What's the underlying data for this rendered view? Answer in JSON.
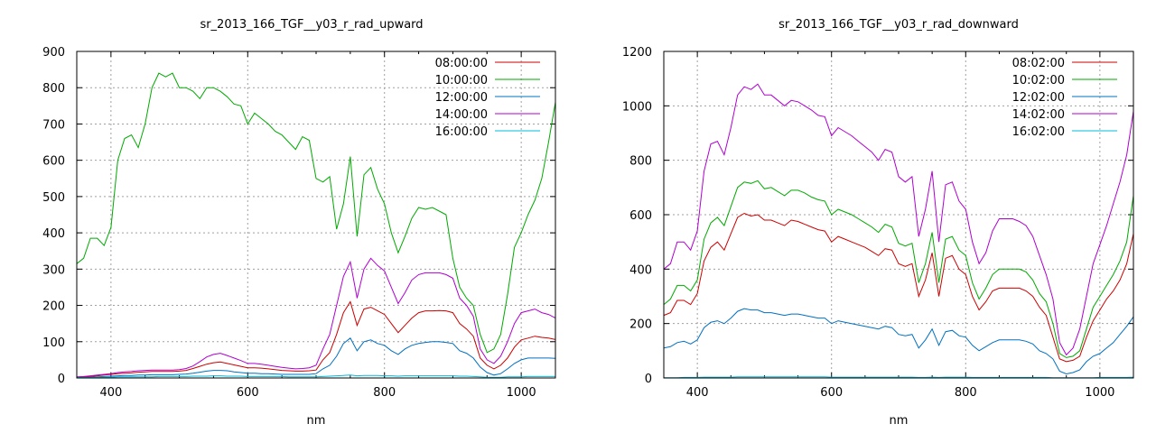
{
  "chart_data": [
    {
      "type": "line",
      "title": "sr_2013_166_TGF__y03_r_rad_upward",
      "xlabel": "nm",
      "ylabel": "",
      "xlim": [
        350,
        1050
      ],
      "ylim": [
        0,
        900
      ],
      "xticks": [
        400,
        600,
        800,
        1000
      ],
      "yticks": [
        0,
        100,
        200,
        300,
        400,
        500,
        600,
        700,
        800,
        900
      ],
      "grid": true,
      "legend_position": "top-right",
      "x": [
        350,
        360,
        370,
        380,
        390,
        400,
        410,
        420,
        430,
        440,
        450,
        460,
        470,
        480,
        490,
        500,
        510,
        520,
        530,
        540,
        550,
        560,
        570,
        580,
        590,
        600,
        610,
        620,
        630,
        640,
        650,
        660,
        670,
        680,
        690,
        700,
        710,
        720,
        730,
        740,
        750,
        760,
        770,
        780,
        790,
        800,
        810,
        820,
        830,
        840,
        850,
        860,
        870,
        880,
        890,
        900,
        910,
        920,
        930,
        940,
        950,
        960,
        970,
        980,
        990,
        1000,
        1010,
        1020,
        1030,
        1040,
        1050
      ],
      "series": [
        {
          "name": "08:00:00",
          "color": "#cc0000",
          "values": [
            2,
            3,
            4,
            6,
            8,
            10,
            12,
            13,
            14,
            16,
            17,
            18,
            18,
            18,
            18,
            19,
            21,
            26,
            32,
            38,
            42,
            44,
            40,
            36,
            32,
            28,
            28,
            27,
            25,
            23,
            21,
            20,
            19,
            19,
            20,
            22,
            50,
            70,
            120,
            180,
            210,
            145,
            190,
            195,
            185,
            175,
            150,
            125,
            145,
            165,
            180,
            185,
            185,
            186,
            185,
            180,
            150,
            135,
            115,
            55,
            35,
            25,
            35,
            55,
            85,
            105,
            110,
            115,
            112,
            110,
            106
          ]
        },
        {
          "name": "10:00:00",
          "color": "#00aa00",
          "values": [
            315,
            330,
            385,
            385,
            365,
            415,
            600,
            660,
            670,
            635,
            700,
            800,
            840,
            830,
            840,
            800,
            800,
            790,
            770,
            800,
            800,
            790,
            775,
            755,
            750,
            700,
            730,
            715,
            700,
            680,
            670,
            650,
            630,
            665,
            655,
            550,
            540,
            555,
            410,
            480,
            610,
            390,
            560,
            580,
            520,
            480,
            400,
            345,
            390,
            440,
            470,
            465,
            470,
            460,
            450,
            330,
            250,
            220,
            200,
            120,
            70,
            80,
            120,
            230,
            360,
            400,
            450,
            490,
            550,
            650,
            760
          ]
        },
        {
          "name": "12:00:00",
          "color": "#0070c0",
          "values": [
            1,
            1,
            2,
            3,
            4,
            5,
            6,
            7,
            7,
            8,
            8,
            9,
            9,
            9,
            9,
            10,
            11,
            13,
            16,
            19,
            21,
            21,
            20,
            17,
            15,
            13,
            13,
            12,
            12,
            11,
            10,
            10,
            10,
            10,
            10,
            12,
            25,
            35,
            60,
            95,
            110,
            75,
            100,
            105,
            95,
            90,
            75,
            65,
            80,
            90,
            95,
            98,
            100,
            100,
            98,
            95,
            75,
            68,
            55,
            30,
            15,
            8,
            12,
            25,
            40,
            50,
            55,
            55,
            55,
            55,
            54
          ]
        },
        {
          "name": "14:00:00",
          "color": "#b000d0",
          "values": [
            3,
            4,
            6,
            8,
            10,
            12,
            15,
            17,
            18,
            20,
            21,
            22,
            22,
            22,
            22,
            23,
            26,
            33,
            45,
            58,
            65,
            68,
            62,
            55,
            48,
            40,
            40,
            38,
            35,
            32,
            29,
            27,
            25,
            26,
            28,
            35,
            80,
            120,
            200,
            280,
            320,
            220,
            300,
            330,
            310,
            295,
            250,
            205,
            235,
            270,
            285,
            290,
            290,
            290,
            285,
            275,
            220,
            200,
            170,
            80,
            50,
            40,
            60,
            100,
            150,
            180,
            185,
            190,
            180,
            175,
            165
          ]
        },
        {
          "name": "16:00:00",
          "color": "#00bbdd",
          "values": [
            1,
            1,
            1,
            2,
            2,
            2,
            3,
            3,
            3,
            3,
            3,
            3,
            4,
            4,
            4,
            4,
            4,
            5,
            5,
            5,
            6,
            6,
            5,
            5,
            5,
            4,
            4,
            4,
            4,
            4,
            4,
            3,
            3,
            3,
            3,
            3,
            4,
            5,
            6,
            7,
            8,
            6,
            7,
            7,
            7,
            6,
            6,
            5,
            6,
            6,
            6,
            6,
            6,
            6,
            6,
            6,
            5,
            5,
            4,
            3,
            2,
            2,
            2,
            3,
            3,
            3,
            4,
            4,
            4,
            4,
            4
          ]
        }
      ]
    },
    {
      "type": "line",
      "title": "sr_2013_166_TGF__y03_r_rad_downward",
      "xlabel": "nm",
      "ylabel": "",
      "xlim": [
        350,
        1050
      ],
      "ylim": [
        0,
        1200
      ],
      "xticks": [
        400,
        600,
        800,
        1000
      ],
      "yticks": [
        0,
        200,
        400,
        600,
        800,
        1000,
        1200
      ],
      "grid": true,
      "legend_position": "top-right",
      "x": [
        350,
        360,
        370,
        380,
        390,
        400,
        410,
        420,
        430,
        440,
        450,
        460,
        470,
        480,
        490,
        500,
        510,
        520,
        530,
        540,
        550,
        560,
        570,
        580,
        590,
        600,
        610,
        620,
        630,
        640,
        650,
        660,
        670,
        680,
        690,
        700,
        710,
        720,
        730,
        740,
        750,
        760,
        770,
        780,
        790,
        800,
        810,
        820,
        830,
        840,
        850,
        860,
        870,
        880,
        890,
        900,
        910,
        920,
        930,
        940,
        950,
        960,
        970,
        980,
        990,
        1000,
        1010,
        1020,
        1030,
        1040,
        1050
      ],
      "series": [
        {
          "name": "08:02:00",
          "color": "#cc0000",
          "values": [
            230,
            240,
            285,
            285,
            270,
            310,
            430,
            480,
            500,
            470,
            530,
            590,
            605,
            595,
            600,
            580,
            580,
            570,
            560,
            580,
            575,
            565,
            555,
            545,
            540,
            500,
            520,
            510,
            500,
            490,
            480,
            465,
            450,
            475,
            470,
            420,
            410,
            420,
            300,
            360,
            460,
            300,
            440,
            450,
            400,
            380,
            300,
            250,
            280,
            320,
            330,
            330,
            330,
            330,
            320,
            300,
            260,
            230,
            150,
            70,
            60,
            65,
            80,
            150,
            210,
            250,
            290,
            320,
            360,
            420,
            530
          ]
        },
        {
          "name": "10:02:00",
          "color": "#00aa00",
          "values": [
            270,
            290,
            340,
            340,
            320,
            360,
            510,
            570,
            590,
            560,
            630,
            700,
            720,
            715,
            725,
            695,
            700,
            685,
            670,
            690,
            690,
            680,
            665,
            655,
            650,
            600,
            620,
            610,
            600,
            585,
            570,
            555,
            535,
            565,
            555,
            495,
            485,
            495,
            350,
            420,
            535,
            350,
            510,
            520,
            470,
            450,
            350,
            290,
            330,
            380,
            400,
            400,
            400,
            400,
            390,
            360,
            310,
            280,
            200,
            90,
            75,
            80,
            100,
            180,
            260,
            300,
            340,
            380,
            430,
            500,
            670
          ]
        },
        {
          "name": "12:02:00",
          "color": "#0070c0",
          "values": [
            110,
            115,
            130,
            135,
            125,
            140,
            185,
            205,
            210,
            200,
            220,
            245,
            255,
            250,
            250,
            240,
            240,
            235,
            230,
            235,
            235,
            230,
            225,
            220,
            220,
            200,
            210,
            205,
            200,
            195,
            190,
            185,
            180,
            190,
            185,
            160,
            155,
            160,
            110,
            140,
            180,
            120,
            170,
            175,
            155,
            150,
            120,
            100,
            115,
            130,
            140,
            140,
            140,
            140,
            135,
            125,
            100,
            90,
            70,
            25,
            15,
            20,
            30,
            60,
            80,
            90,
            110,
            130,
            160,
            190,
            225
          ]
        },
        {
          "name": "14:02:00",
          "color": "#b000d0",
          "values": [
            400,
            420,
            500,
            500,
            470,
            540,
            760,
            860,
            870,
            820,
            920,
            1040,
            1070,
            1060,
            1080,
            1040,
            1040,
            1020,
            1000,
            1020,
            1015,
            1000,
            985,
            965,
            960,
            890,
            920,
            905,
            890,
            870,
            850,
            830,
            800,
            840,
            830,
            740,
            720,
            740,
            520,
            620,
            760,
            500,
            710,
            720,
            650,
            620,
            500,
            420,
            460,
            540,
            585,
            585,
            585,
            575,
            560,
            520,
            450,
            380,
            290,
            130,
            85,
            110,
            180,
            300,
            420,
            490,
            560,
            640,
            720,
            820,
            980
          ]
        },
        {
          "name": "16:02:00",
          "color": "#00bbdd",
          "values": [
            1,
            1,
            1,
            2,
            2,
            2,
            3,
            3,
            3,
            3,
            3,
            4,
            4,
            4,
            4,
            4,
            4,
            4,
            4,
            4,
            4,
            4,
            4,
            4,
            4,
            3,
            3,
            3,
            3,
            3,
            3,
            3,
            3,
            3,
            3,
            3,
            3,
            3,
            2,
            2,
            3,
            2,
            3,
            3,
            3,
            3,
            2,
            2,
            2,
            2,
            2,
            2,
            2,
            2,
            2,
            2,
            2,
            2,
            1,
            1,
            1,
            1,
            1,
            1,
            1,
            2,
            2,
            2,
            2,
            2,
            3
          ]
        }
      ]
    }
  ]
}
